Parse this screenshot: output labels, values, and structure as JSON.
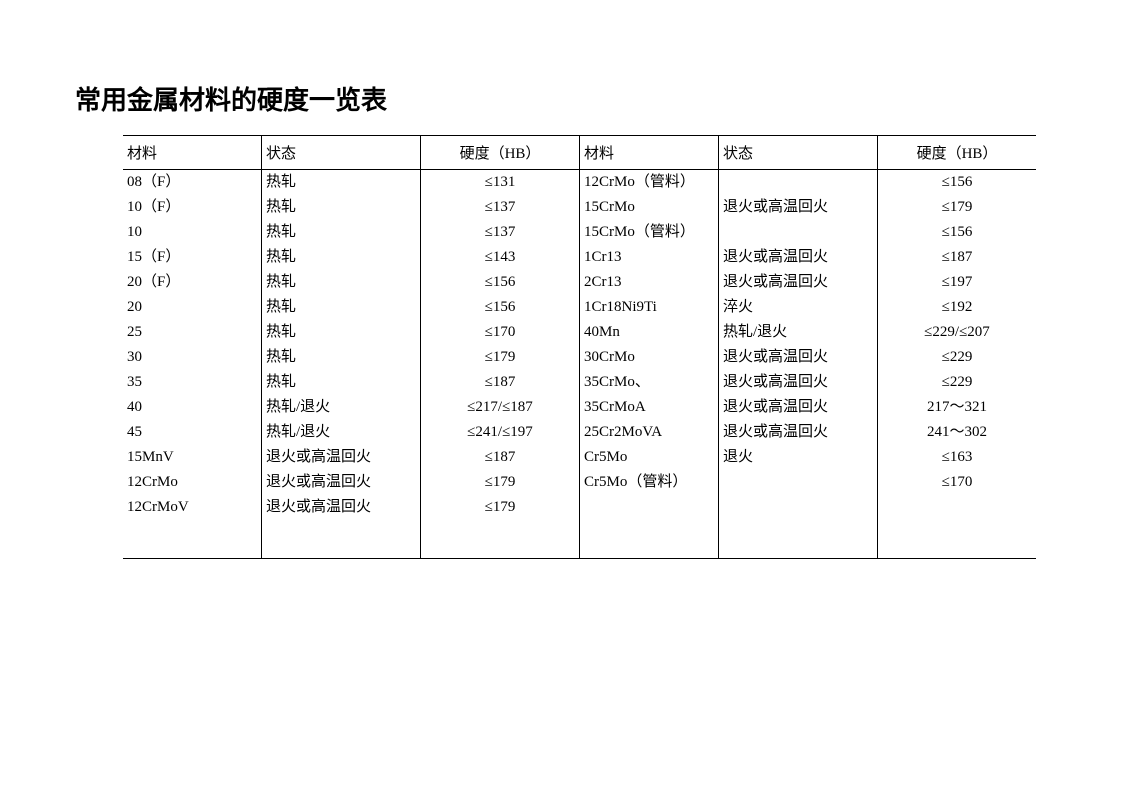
{
  "title": "常用金属材料的硬度一览表",
  "headers": {
    "material": "材料",
    "state": "状态",
    "hardness": "硬度（HB）"
  },
  "rows": [
    {
      "m1": "08（F）",
      "s1": "热轧",
      "h1": "≤131",
      "m2": "12CrMo（管料）",
      "s2": "",
      "h2": "≤156"
    },
    {
      "m1": "10（F）",
      "s1": "热轧",
      "h1": "≤137",
      "m2": "15CrMo",
      "s2": "退火或高温回火",
      "h2": "≤179"
    },
    {
      "m1": "10",
      "s1": "热轧",
      "h1": "≤137",
      "m2": "15CrMo（管料）",
      "s2": "",
      "h2": "≤156"
    },
    {
      "m1": "15（F）",
      "s1": "热轧",
      "h1": "≤143",
      "m2": "1Cr13",
      "s2": "退火或高温回火",
      "h2": "≤187"
    },
    {
      "m1": "20（F）",
      "s1": "热轧",
      "h1": "≤156",
      "m2": "2Cr13",
      "s2": "退火或高温回火",
      "h2": "≤197"
    },
    {
      "m1": "20",
      "s1": "热轧",
      "h1": "≤156",
      "m2": "1Cr18Ni9Ti",
      "s2": "淬火",
      "h2": "≤192"
    },
    {
      "m1": "25",
      "s1": "热轧",
      "h1": "≤170",
      "m2": "40Mn",
      "s2": "热轧/退火",
      "h2": "≤229/≤207"
    },
    {
      "m1": "30",
      "s1": "热轧",
      "h1": "≤179",
      "m2": "30CrMo",
      "s2": "退火或高温回火",
      "h2": "≤229"
    },
    {
      "m1": "35",
      "s1": "热轧",
      "h1": "≤187",
      "m2": "35CrMo、",
      "s2": "退火或高温回火",
      "h2": "≤229"
    },
    {
      "m1": "40",
      "s1": "热轧/退火",
      "h1": "≤217/≤187",
      "m2": "35CrMoA",
      "s2": "退火或高温回火",
      "h2": "217～321"
    },
    {
      "m1": "45",
      "s1": "热轧/退火",
      "h1": "≤241/≤197",
      "m2": "25Cr2MoVA",
      "s2": "退火或高温回火",
      "h2": "241～302"
    },
    {
      "m1": "15MnV",
      "s1": "退火或高温回火",
      "h1": "≤187",
      "m2": "Cr5Mo",
      "s2": "退火",
      "h2": "≤163"
    },
    {
      "m1": "12CrMo",
      "s1": "退火或高温回火",
      "h1": "≤179",
      "m2": "Cr5Mo（管料）",
      "s2": "",
      "h2": "≤170"
    },
    {
      "m1": "12CrMoV",
      "s1": "退火或高温回火",
      "h1": "≤179",
      "m2": "",
      "s2": "",
      "h2": ""
    }
  ]
}
